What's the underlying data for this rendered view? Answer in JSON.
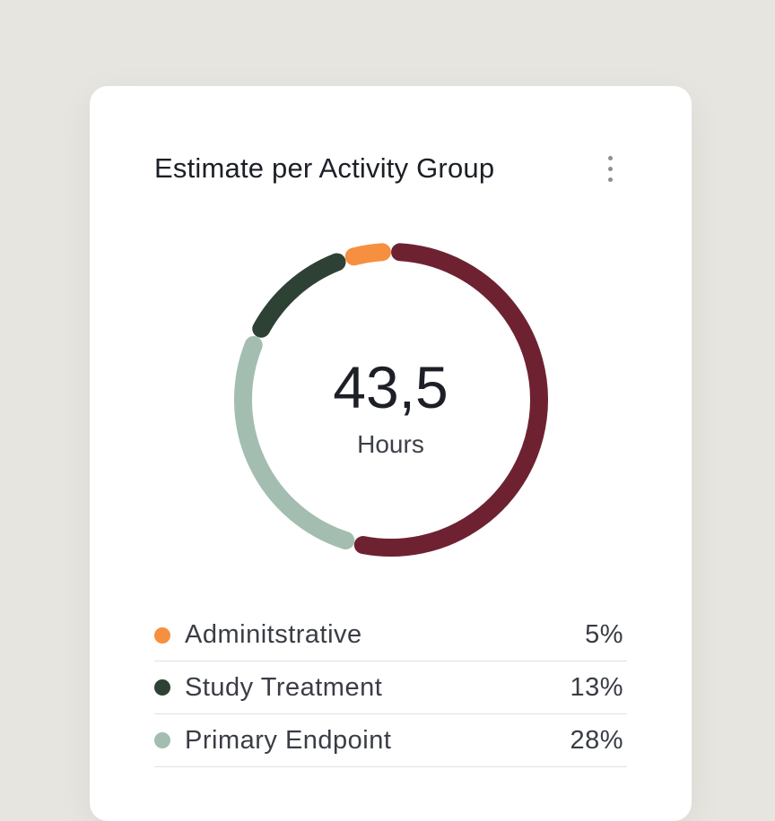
{
  "card": {
    "title": "Estimate per Activity Group"
  },
  "chart_data": {
    "type": "pie",
    "variant": "donut",
    "center_value": "43,5",
    "center_unit": "Hours",
    "slices": [
      {
        "label": "Adminitstrative",
        "value": 5,
        "value_label": "5%",
        "color": "#f68f3f"
      },
      {
        "label": "Study Treatment",
        "value": 13,
        "value_label": "13%",
        "color": "#2d4234"
      },
      {
        "label": "Primary Endpoint",
        "value": 28,
        "value_label": "28%",
        "color": "#a3bdb0"
      },
      {
        "label": "",
        "value": 54,
        "value_label": "",
        "color": "#6e2231"
      }
    ]
  }
}
